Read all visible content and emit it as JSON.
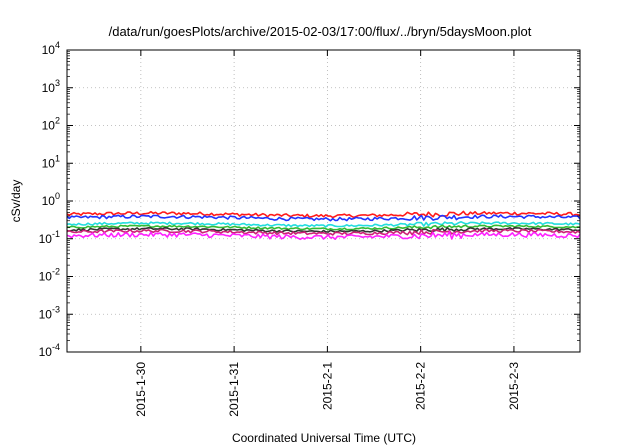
{
  "chart_data": {
    "type": "line",
    "title": "/data/run/goesPlots/archive/2015-02-03/17:00/flux/../bryn/5daysMoon.plot",
    "xlabel": "Coordinated Universal Time (UTC)",
    "ylabel": "cSv/day",
    "yscale": "log",
    "ylim": [
      0.0001,
      10000
    ],
    "xlim": [
      "2015-01-29 05:00",
      "2015-02-03 17:00"
    ],
    "x_ticks": [
      "2015-1-30",
      "2015-1-31",
      "2015-2-1",
      "2015-2-2",
      "2015-2-3"
    ],
    "y_ticks": [
      {
        "base": "10",
        "exp": "-4"
      },
      {
        "base": "10",
        "exp": "-3"
      },
      {
        "base": "10",
        "exp": "-2"
      },
      {
        "base": "10",
        "exp": "-1"
      },
      {
        "base": "10",
        "exp": "0"
      },
      {
        "base": "10",
        "exp": "1"
      },
      {
        "base": "10",
        "exp": "2"
      },
      {
        "base": "10",
        "exp": "3"
      },
      {
        "base": "10",
        "exp": "4"
      }
    ],
    "grid": true,
    "series": [
      {
        "color": "#ff1a1a",
        "level": 0.44,
        "noise": 0.1
      },
      {
        "color": "#2233ff",
        "level": 0.36,
        "noise": 0.1
      },
      {
        "color": "#22dddd",
        "level": 0.24,
        "noise": 0.07
      },
      {
        "color": "#33bb33",
        "level": 0.2,
        "noise": 0.06
      },
      {
        "color": "#333333",
        "level": 0.17,
        "noise": 0.07
      },
      {
        "color": "#cc2277",
        "level": 0.15,
        "noise": 0.09
      },
      {
        "color": "#ff22ff",
        "level": 0.12,
        "noise": 0.14
      }
    ]
  }
}
